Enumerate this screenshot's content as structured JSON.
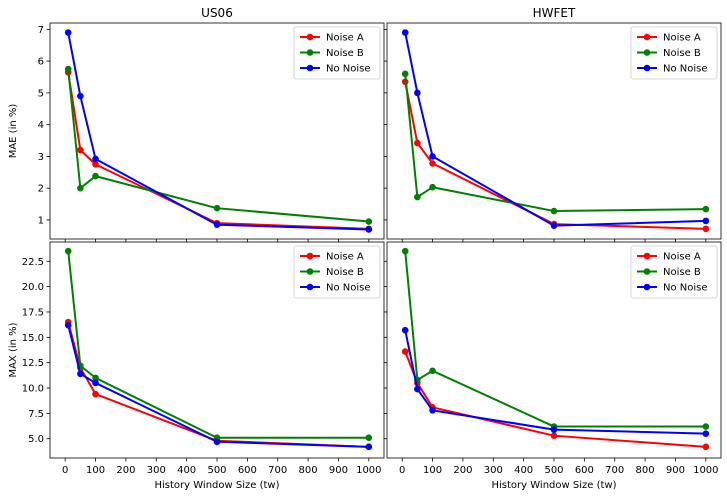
{
  "chart_data": [
    {
      "type": "line",
      "title": "US06",
      "xlabel": "",
      "ylabel": "MAE (in %)",
      "x": [
        10,
        50,
        100,
        500,
        1000
      ],
      "xlim": [
        -50,
        1050
      ],
      "ylim": [
        0.4,
        7.2
      ],
      "yticks": [
        1,
        2,
        3,
        4,
        5,
        6,
        7
      ],
      "ytick_labels": [
        "1",
        "2",
        "3",
        "4",
        "5",
        "6",
        "7"
      ],
      "legend_position": "top-right",
      "series": [
        {
          "name": "Noise A",
          "color": "#ff0000",
          "values": [
            5.65,
            3.2,
            2.75,
            0.9,
            0.72
          ]
        },
        {
          "name": "Noise B",
          "color": "#008000",
          "values": [
            5.75,
            2.0,
            2.38,
            1.37,
            0.95
          ]
        },
        {
          "name": "No Noise",
          "color": "#0000ff",
          "values": [
            6.9,
            4.9,
            2.92,
            0.85,
            0.7
          ]
        }
      ]
    },
    {
      "type": "line",
      "title": "HWFET",
      "xlabel": "",
      "ylabel": "",
      "x": [
        10,
        50,
        100,
        500,
        1000
      ],
      "xlim": [
        -50,
        1050
      ],
      "ylim": [
        0.4,
        7.2
      ],
      "yticks": [
        1,
        2,
        3,
        4,
        5,
        6,
        7
      ],
      "ytick_labels": [],
      "legend_position": "top-right",
      "series": [
        {
          "name": "Noise A",
          "color": "#ff0000",
          "values": [
            5.35,
            3.42,
            2.78,
            0.87,
            0.72
          ]
        },
        {
          "name": "Noise B",
          "color": "#008000",
          "values": [
            5.6,
            1.72,
            2.03,
            1.28,
            1.34
          ]
        },
        {
          "name": "No Noise",
          "color": "#0000ff",
          "values": [
            6.9,
            5.0,
            3.0,
            0.82,
            0.97
          ]
        }
      ]
    },
    {
      "type": "line",
      "title": "",
      "xlabel": "History Window Size (tw)",
      "ylabel": "MAX (in %)",
      "x": [
        10,
        50,
        100,
        500,
        1000
      ],
      "xlim": [
        -50,
        1050
      ],
      "ylim": [
        3.1,
        24.4
      ],
      "yticks": [
        5,
        7.5,
        10,
        12.5,
        15,
        17.5,
        20,
        22.5
      ],
      "ytick_labels": [
        "5.0",
        "7.5",
        "10.0",
        "12.5",
        "15.0",
        "17.5",
        "20.0",
        "22.5"
      ],
      "xticks": [
        0,
        100,
        200,
        300,
        400,
        500,
        600,
        700,
        800,
        900,
        1000
      ],
      "xtick_labels": [
        "0",
        "100",
        "200",
        "300",
        "400",
        "500",
        "600",
        "700",
        "800",
        "900",
        "1000"
      ],
      "legend_position": "top-right",
      "series": [
        {
          "name": "Noise A",
          "color": "#ff0000",
          "values": [
            16.5,
            12.0,
            9.4,
            4.8,
            4.2
          ]
        },
        {
          "name": "Noise B",
          "color": "#008000",
          "values": [
            23.5,
            12.2,
            11.0,
            5.1,
            5.1
          ]
        },
        {
          "name": "No Noise",
          "color": "#0000ff",
          "values": [
            16.2,
            11.4,
            10.5,
            4.7,
            4.2
          ]
        }
      ]
    },
    {
      "type": "line",
      "title": "",
      "xlabel": "History Window Size (tw)",
      "ylabel": "",
      "x": [
        10,
        50,
        100,
        500,
        1000
      ],
      "xlim": [
        -50,
        1050
      ],
      "ylim": [
        3.1,
        24.4
      ],
      "yticks": [
        5,
        7.5,
        10,
        12.5,
        15,
        17.5,
        20,
        22.5
      ],
      "ytick_labels": [],
      "xticks": [
        0,
        100,
        200,
        300,
        400,
        500,
        600,
        700,
        800,
        900,
        1000
      ],
      "xtick_labels": [
        "0",
        "100",
        "200",
        "300",
        "400",
        "500",
        "600",
        "700",
        "800",
        "900",
        "1000"
      ],
      "legend_position": "top-right",
      "series": [
        {
          "name": "Noise A",
          "color": "#ff0000",
          "values": [
            13.6,
            10.5,
            8.1,
            5.3,
            4.2
          ]
        },
        {
          "name": "Noise B",
          "color": "#008000",
          "values": [
            23.5,
            10.8,
            11.7,
            6.2,
            6.2
          ]
        },
        {
          "name": "No Noise",
          "color": "#0000ff",
          "values": [
            15.7,
            9.9,
            7.8,
            5.9,
            5.5
          ]
        }
      ]
    }
  ]
}
